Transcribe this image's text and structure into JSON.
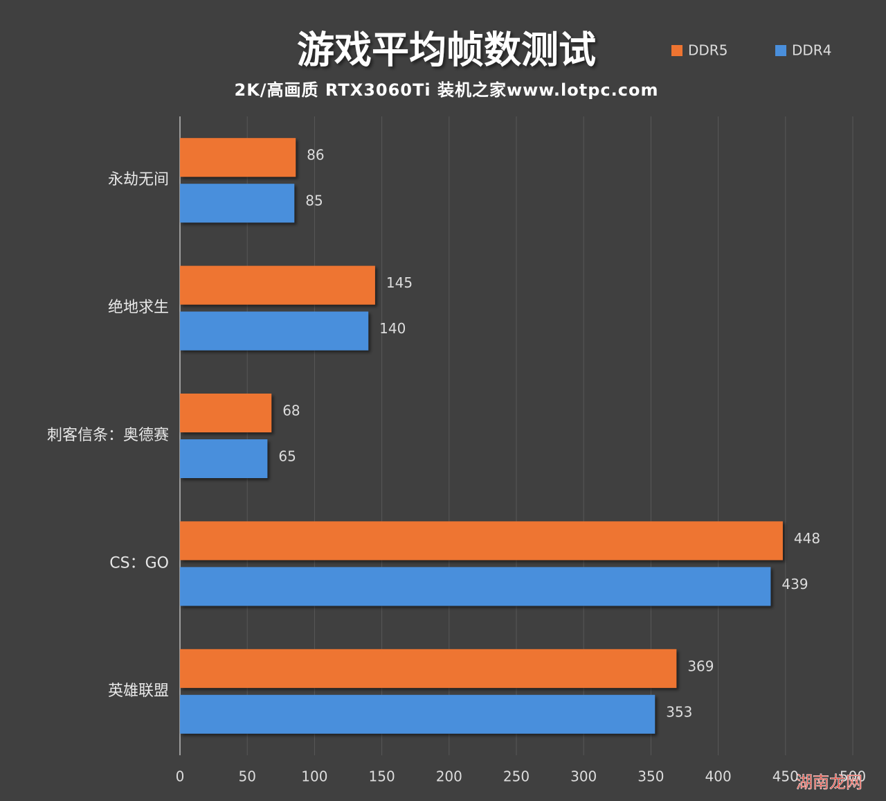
{
  "chart_data": {
    "type": "bar",
    "orientation": "horizontal",
    "title": "游戏平均帧数测试",
    "subtitle": "2K/高画质 RTX3060Ti 装机之家www.lotpc.com",
    "categories": [
      "永劫无间",
      "绝地求生",
      "刺客信条：奥德赛",
      "CS：GO",
      "英雄联盟"
    ],
    "series": [
      {
        "name": "DDR5",
        "color": "#ee7431",
        "values": [
          86,
          145,
          68,
          448,
          369
        ]
      },
      {
        "name": "DDR4",
        "color": "#4a8fdc",
        "values": [
          85,
          140,
          65,
          439,
          353
        ]
      }
    ],
    "xlim": [
      0,
      500
    ],
    "xticks": [
      0,
      50,
      100,
      150,
      200,
      250,
      300,
      350,
      400,
      450,
      500
    ],
    "grid": true,
    "legend": "top-right",
    "watermark": "湖南龙网"
  }
}
